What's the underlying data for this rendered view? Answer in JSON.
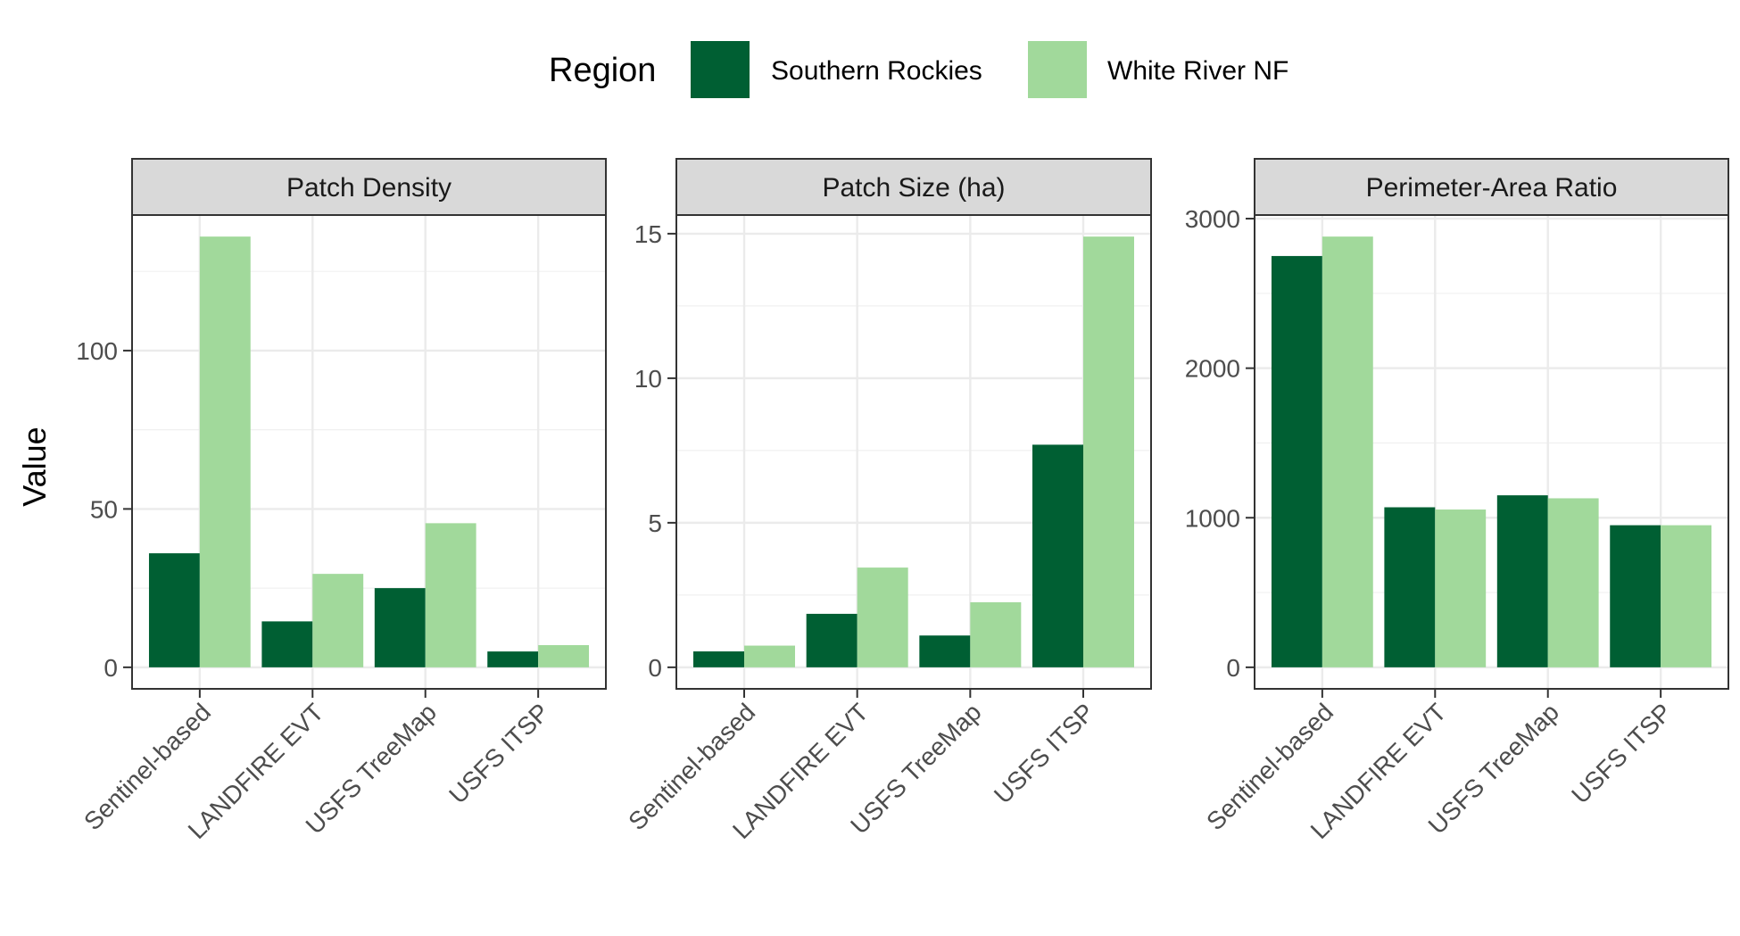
{
  "legend": {
    "title": "Region",
    "entries": [
      {
        "label": "Southern Rockies",
        "color": "#005f33"
      },
      {
        "label": "White River NF",
        "color": "#a1d99b"
      }
    ]
  },
  "y_axis_label": "Value",
  "chart_data": [
    {
      "type": "bar",
      "title": "Patch Density",
      "categories": [
        "Sentinel-based",
        "LANDFIRE EVT",
        "USFS TreeMap",
        "USFS ITSP"
      ],
      "series": [
        {
          "name": "Southern Rockies",
          "values": [
            36,
            14.5,
            25,
            5
          ]
        },
        {
          "name": "White River NF",
          "values": [
            136,
            29.5,
            45.5,
            7
          ]
        }
      ],
      "ylabel": "Value",
      "ylim": [
        -6.8,
        142.8
      ],
      "yticks": [
        0,
        50,
        100
      ],
      "ytick_labels": [
        "0",
        "50",
        "100"
      ],
      "grid": true
    },
    {
      "type": "bar",
      "title": "Patch Size (ha)",
      "categories": [
        "Sentinel-based",
        "LANDFIRE EVT",
        "USFS TreeMap",
        "USFS ITSP"
      ],
      "series": [
        {
          "name": "Southern Rockies",
          "values": [
            0.55,
            1.85,
            1.1,
            7.7
          ]
        },
        {
          "name": "White River NF",
          "values": [
            0.75,
            3.45,
            2.25,
            14.9
          ]
        }
      ],
      "ylim": [
        -0.745,
        15.645
      ],
      "yticks": [
        0,
        5,
        10,
        15
      ],
      "ytick_labels": [
        "0",
        "5",
        "10",
        "15"
      ],
      "grid": true
    },
    {
      "type": "bar",
      "title": "Perimeter-Area Ratio",
      "categories": [
        "Sentinel-based",
        "LANDFIRE EVT",
        "USFS TreeMap",
        "USFS ITSP"
      ],
      "series": [
        {
          "name": "Southern Rockies",
          "values": [
            2750,
            1070,
            1150,
            950
          ]
        },
        {
          "name": "White River NF",
          "values": [
            2880,
            1055,
            1130,
            950
          ]
        }
      ],
      "ylim": [
        -144,
        3024
      ],
      "yticks": [
        0,
        1000,
        2000,
        3000
      ],
      "ytick_labels": [
        "0",
        "1000",
        "2000",
        "3000"
      ],
      "grid": true
    }
  ]
}
